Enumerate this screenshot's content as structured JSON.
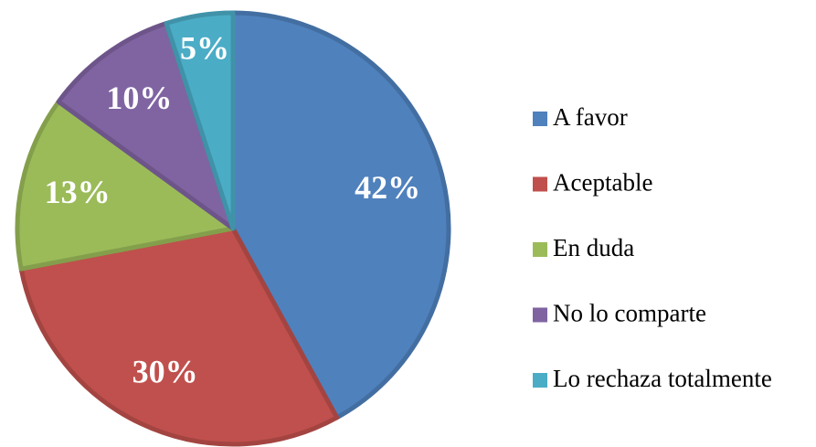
{
  "chart_data": {
    "type": "pie",
    "categories": [
      "A favor",
      "Aceptable",
      "En duda",
      "No lo comparte",
      "Lo rechaza totalmente"
    ],
    "values": [
      42,
      30,
      13,
      10,
      5
    ],
    "value_labels": [
      "42%",
      "30%",
      "13%",
      "10%",
      "5%"
    ],
    "colors": [
      "#4f81bd",
      "#c0504d",
      "#9bbb59",
      "#8064a2",
      "#4bacc6"
    ],
    "legend": "right"
  }
}
